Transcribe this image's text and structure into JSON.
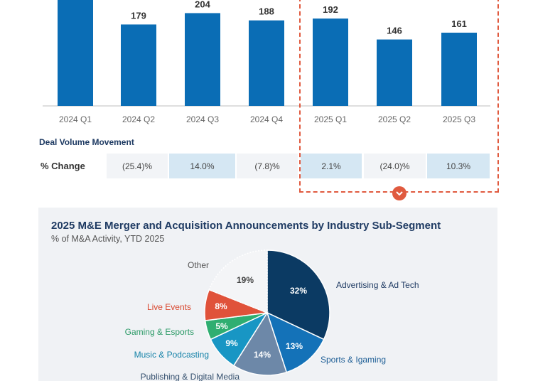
{
  "chart_data": [
    {
      "type": "bar",
      "categories": [
        "2024 Q1",
        "2024 Q2",
        "2024 Q3",
        "2024 Q4",
        "2025 Q1",
        "2025 Q2",
        "2025 Q3"
      ],
      "values": [
        240,
        179,
        204,
        188,
        192,
        146,
        161
      ],
      "data_labels": [
        "",
        "179",
        "204",
        "188",
        "192",
        "146",
        "161"
      ],
      "color": "#0a6db5",
      "grid": false,
      "highlighted_categories": [
        "2025 Q1",
        "2025 Q2",
        "2025 Q3"
      ]
    },
    {
      "type": "pie",
      "title": "2025 M&E Merger and Acquisition Announcements by Industry Sub-Segment",
      "subtitle": "% of M&A Activity, YTD 2025",
      "slices": [
        {
          "name": "Advertising & Ad Tech",
          "value": 32,
          "label": "32%",
          "color": "#0b3a63",
          "label_color": "#ffffff",
          "legend_color": "#1f3b63"
        },
        {
          "name": "Sports & Igaming",
          "value": 13,
          "label": "13%",
          "color": "#1472b8",
          "label_color": "#ffffff",
          "legend_color": "#1f5f96"
        },
        {
          "name": "Publishing & Digital Media",
          "value": 14,
          "label": "14%",
          "color": "#6d88a8",
          "label_color": "#ffffff",
          "legend_color": "#35506e"
        },
        {
          "name": "Music & Podcasting",
          "value": 9,
          "label": "9%",
          "color": "#1896c4",
          "label_color": "#ffffff",
          "legend_color": "#1582a8"
        },
        {
          "name": "Gaming & Esports",
          "value": 5,
          "label": "5%",
          "color": "#2fae71",
          "label_color": "#ffffff",
          "legend_color": "#2b9a66"
        },
        {
          "name": "Live Events",
          "value": 8,
          "label": "8%",
          "color": "#e0523a",
          "label_color": "#ffffff",
          "legend_color": "#d9482f"
        },
        {
          "name": "Other",
          "value": 19,
          "label": "19%",
          "color": "#f4f5f7",
          "label_color": "#444444",
          "legend_color": "#555555"
        }
      ]
    }
  ],
  "deal_volume": {
    "section_label": "Deal Volume Movement",
    "row_label": "% Change",
    "values": [
      "(25.4)%",
      "14.0%",
      "(7.8)%",
      "2.1%",
      "(24.0)%",
      "10.3%"
    ],
    "shading": [
      "light",
      "blue",
      "light",
      "blue",
      "light",
      "blue"
    ]
  },
  "icons": {
    "expand": "chevron-down-icon"
  }
}
